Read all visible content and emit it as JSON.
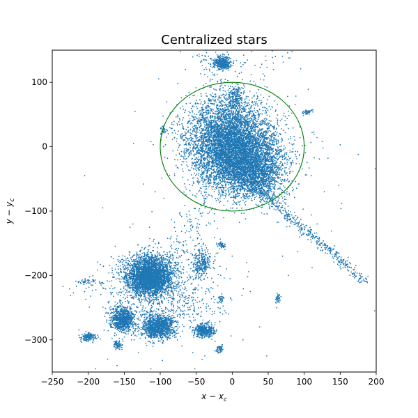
{
  "chart_data": {
    "type": "scatter",
    "title": "Centralized stars",
    "xlabel": "x − x_c",
    "ylabel": "y − y_c",
    "xlim": [
      -250,
      200
    ],
    "ylim": [
      -350,
      150
    ],
    "xticks": [
      -250,
      -200,
      -150,
      -100,
      -50,
      0,
      50,
      100,
      150,
      200
    ],
    "yticks": [
      -300,
      -200,
      -100,
      0,
      100
    ],
    "grid": false,
    "legend": "none",
    "colors": {
      "points": "#1f77b4",
      "circle": "#008000",
      "axes": "#000000"
    },
    "circle": {
      "center": [
        0,
        0
      ],
      "radius": 100
    },
    "clusters": [
      {
        "x": 5,
        "y": -10,
        "sx": 32,
        "sy": 30,
        "n": 5200,
        "rot": -0.6
      },
      {
        "x": -10,
        "y": 30,
        "sx": 30,
        "sy": 28,
        "n": 1600,
        "rot": 0.0
      },
      {
        "x": 30,
        "y": -40,
        "sx": 22,
        "sy": 18,
        "n": 1400,
        "rot": -0.7
      },
      {
        "x": -115,
        "y": -200,
        "sx": 15,
        "sy": 15,
        "n": 3200,
        "rot": 0.0
      },
      {
        "x": -100,
        "y": -230,
        "sx": 40,
        "sy": 32,
        "n": 900,
        "rot": 0.0
      },
      {
        "x": -103,
        "y": -280,
        "sx": 12,
        "sy": 9,
        "n": 1100,
        "rot": 0.0
      },
      {
        "x": -152,
        "y": -268,
        "sx": 8,
        "sy": 9,
        "n": 900,
        "rot": 0.0
      },
      {
        "x": -38,
        "y": -286,
        "sx": 7,
        "sy": 5,
        "n": 420,
        "rot": 0.0
      },
      {
        "x": -13,
        "y": 130,
        "sx": 6,
        "sy": 5,
        "n": 380,
        "rot": 0.0
      },
      {
        "x": -200,
        "y": -296,
        "sx": 5,
        "sy": 3,
        "n": 160,
        "rot": 0.0
      },
      {
        "x": 4,
        "y": 75,
        "sx": 5,
        "sy": 10,
        "n": 200,
        "rot": 0.0
      },
      {
        "x": -42,
        "y": -180,
        "sx": 7,
        "sy": 12,
        "n": 280,
        "rot": 0.0
      },
      {
        "x": -160,
        "y": -308,
        "sx": 4,
        "sy": 4,
        "n": 70,
        "rot": 0.0
      },
      {
        "x": -18,
        "y": -314,
        "sx": 2.5,
        "sy": 3,
        "n": 60,
        "rot": 0.0
      },
      {
        "x": -15,
        "y": -153,
        "sx": 3,
        "sy": 3,
        "n": 50,
        "rot": 0.0
      },
      {
        "x": 63,
        "y": -236,
        "sx": 1.5,
        "sy": 4,
        "n": 40,
        "rot": 0.0
      },
      {
        "x": 104,
        "y": 54,
        "sx": 4,
        "sy": 2,
        "n": 45,
        "rot": 0.4
      },
      {
        "x": -96,
        "y": 26,
        "sx": 2,
        "sy": 3,
        "n": 30,
        "rot": 0.0
      },
      {
        "x": -200,
        "y": -209,
        "sx": 12,
        "sy": 3,
        "n": 45,
        "rot": 0.0
      },
      {
        "x": -15,
        "y": -237,
        "sx": 2,
        "sy": 3,
        "n": 30,
        "rot": 0.0
      },
      {
        "x": -145,
        "y": -197,
        "sx": 14,
        "sy": 8,
        "n": 60,
        "rot": 0.0
      },
      {
        "x": 30,
        "y": 130,
        "sx": 30,
        "sy": 15,
        "n": 40,
        "rot": 0.0
      }
    ],
    "streams": [
      {
        "from": [
          30,
          -60
        ],
        "to": [
          185,
          -210
        ],
        "width": 7,
        "n": 450
      },
      {
        "from": [
          -10,
          -40
        ],
        "to": [
          -100,
          -200
        ],
        "width": 18,
        "n": 180
      },
      {
        "from": [
          -10,
          60
        ],
        "to": [
          -45,
          150
        ],
        "width": 10,
        "n": 80
      }
    ],
    "sparse_points": [
      [
        -235,
        -217
      ],
      [
        -205,
        -45
      ],
      [
        -193,
        -210
      ],
      [
        -182,
        -215
      ],
      [
        -170,
        -220
      ],
      [
        -158,
        -190
      ],
      [
        -138,
        -120
      ],
      [
        -150,
        -205
      ],
      [
        -173,
        -330
      ],
      [
        -190,
        -345
      ],
      [
        -160,
        -340
      ],
      [
        -130,
        -350
      ],
      [
        -113,
        -345
      ],
      [
        -97,
        -332
      ],
      [
        -45,
        165
      ],
      [
        -65,
        120
      ],
      [
        -72,
        148
      ],
      [
        -135,
        55
      ],
      [
        -113,
        8
      ],
      [
        -137,
        5
      ],
      [
        -123,
        -58
      ],
      [
        -107,
        -70
      ],
      [
        -115,
        -125
      ],
      [
        -180,
        -95
      ],
      [
        -203,
        -220
      ],
      [
        -126,
        -240
      ],
      [
        -85,
        -140
      ],
      [
        -70,
        -180
      ],
      [
        -60,
        -235
      ],
      [
        -76,
        -300
      ],
      [
        -55,
        -320
      ],
      [
        -38,
        -325
      ],
      [
        -52,
        -345
      ],
      [
        -5,
        -260
      ],
      [
        15,
        -300
      ],
      [
        38,
        -280
      ],
      [
        48,
        -325
      ],
      [
        25,
        -225
      ],
      [
        -3,
        -205
      ],
      [
        78,
        -200
      ],
      [
        91,
        -163
      ],
      [
        111,
        -188
      ],
      [
        151,
        -96
      ],
      [
        152,
        -88
      ],
      [
        128,
        -70
      ],
      [
        148,
        -60
      ],
      [
        175,
        -12
      ],
      [
        199,
        -34
      ],
      [
        186,
        -205
      ],
      [
        198,
        -255
      ],
      [
        170,
        -200
      ],
      [
        163,
        -180
      ],
      [
        107,
        -33
      ],
      [
        121,
        -19
      ],
      [
        133,
        -18
      ],
      [
        101,
        2
      ],
      [
        111,
        22
      ],
      [
        126,
        -2
      ],
      [
        150,
        3
      ],
      [
        125,
        8
      ],
      [
        95,
        121
      ],
      [
        80,
        138
      ],
      [
        77,
        146
      ],
      [
        83,
        148
      ],
      [
        60,
        140
      ],
      [
        57,
        130
      ],
      [
        110,
        -106
      ],
      [
        118,
        -120
      ],
      [
        138,
        -131
      ],
      [
        123,
        -161
      ],
      [
        96,
        -138
      ],
      [
        86,
        -121
      ],
      [
        70,
        -170
      ],
      [
        45,
        110
      ],
      [
        -15,
        105
      ],
      [
        -40,
        95
      ],
      [
        -60,
        55
      ],
      [
        -72,
        60
      ],
      [
        -90,
        25
      ],
      [
        -83,
        11
      ],
      [
        -80,
        -45
      ],
      [
        -95,
        -80
      ],
      [
        -60,
        -100
      ],
      [
        -55,
        -75
      ],
      [
        -30,
        -120
      ],
      [
        -40,
        -150
      ],
      [
        -20,
        -165
      ],
      [
        0,
        -170
      ],
      [
        -8,
        -190
      ],
      [
        20,
        -180
      ],
      [
        -50,
        -260
      ],
      [
        -70,
        -230
      ],
      [
        -150,
        -230
      ],
      [
        -155,
        -255
      ],
      [
        -178,
        -285
      ],
      [
        -130,
        -320
      ],
      [
        -110,
        -310
      ],
      [
        -140,
        -300
      ],
      [
        -90,
        -300
      ],
      [
        -60,
        -270
      ]
    ]
  }
}
